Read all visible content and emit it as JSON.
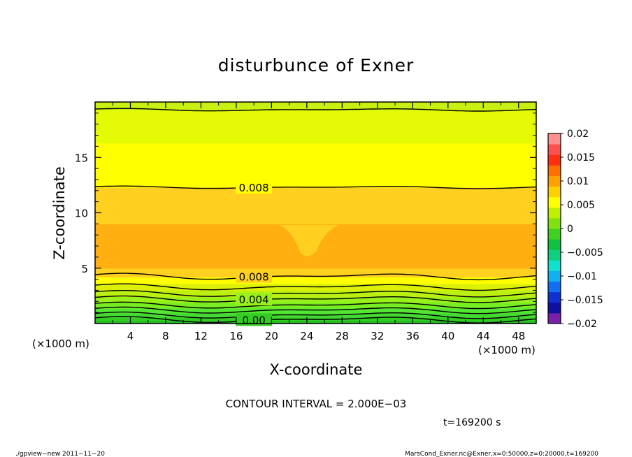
{
  "chart_data": {
    "type": "contour",
    "title": "disturbunce of Exner",
    "xlabel": "X-coordinate",
    "ylabel": "Z-coordinate",
    "x_unit": "(×1000 m)",
    "y_unit": "(×1000 m)",
    "xlim": [
      0,
      50
    ],
    "ylim": [
      0,
      20
    ],
    "xticks": [
      4,
      8,
      12,
      16,
      20,
      24,
      28,
      32,
      36,
      40,
      44,
      48
    ],
    "yticks": [
      5,
      10,
      15
    ],
    "bands": [
      {
        "z0": 0.0,
        "z1": 0.25,
        "color": "#22bb22",
        "level": -0.002
      },
      {
        "z0": 0.25,
        "z1": 0.55,
        "color": "#33cc22",
        "level": 0.0
      },
      {
        "z0": 0.55,
        "z1": 0.95,
        "color": "#44d933",
        "level": 0.001
      },
      {
        "z0": 0.95,
        "z1": 1.4,
        "color": "#55e633",
        "level": 0.002
      },
      {
        "z0": 1.4,
        "z1": 1.9,
        "color": "#77ee22",
        "level": 0.003
      },
      {
        "z0": 1.9,
        "z1": 2.4,
        "color": "#99f01a",
        "level": 0.004
      },
      {
        "z0": 2.4,
        "z1": 3.0,
        "color": "#bbf010",
        "level": 0.005
      },
      {
        "z0": 3.0,
        "z1": 3.6,
        "color": "#ddf008",
        "level": 0.006
      },
      {
        "z0": 3.6,
        "z1": 4.2,
        "color": "#ffff00",
        "level": 0.007
      },
      {
        "z0": 4.2,
        "z1": 5.0,
        "color": "#ffd020",
        "level": 0.008
      },
      {
        "z0": 5.0,
        "z1": 9.0,
        "color": "#ffb010",
        "level": 0.009
      },
      {
        "z0": 9.0,
        "z1": 12.3,
        "color": "#ffd020",
        "level": 0.008
      },
      {
        "z0": 12.3,
        "z1": 16.3,
        "color": "#ffff00",
        "level": 0.007
      },
      {
        "z0": 16.3,
        "z1": 19.3,
        "color": "#e5fa05",
        "level": 0.006
      },
      {
        "z0": 19.3,
        "z1": 20.0,
        "color": "#c8f010",
        "level": 0.005
      }
    ],
    "contour_lines": [
      {
        "z": 0.35,
        "label": "0.00"
      },
      {
        "z": 0.75,
        "label": ""
      },
      {
        "z": 1.2,
        "label": ""
      },
      {
        "z": 1.65,
        "label": ""
      },
      {
        "z": 2.2,
        "label": "0.004"
      },
      {
        "z": 2.7,
        "label": ""
      },
      {
        "z": 3.3,
        "label": ""
      },
      {
        "z": 4.25,
        "label": "0.008"
      },
      {
        "z": 12.3,
        "label": "0.008"
      },
      {
        "z": 19.3,
        "label": ""
      }
    ],
    "colorbar": {
      "ticks": [
        "0.02",
        "0.015",
        "0.01",
        "0.005",
        "0",
        "−0.005",
        "−0.01",
        "−0.015",
        "−0.02"
      ],
      "range": [
        -0.02,
        0.02
      ],
      "colors": [
        "#7a20a8",
        "#1010a0",
        "#1030d0",
        "#1070f0",
        "#10b0f0",
        "#10e0d0",
        "#10d080",
        "#10c040",
        "#40d020",
        "#80e010",
        "#c0f000",
        "#ffff00",
        "#ffd000",
        "#ffa000",
        "#ff7000",
        "#ff3010",
        "#ff5050",
        "#ff9090"
      ]
    }
  },
  "annotations": {
    "contour_interval": "CONTOUR INTERVAL = 2.000E−03",
    "time": "t=169200 s",
    "footer_left": "./gpview−new   2011−11−20",
    "footer_right": "MarsCond_Exner.nc@Exner,x=0:50000,z=0:20000,t=169200"
  }
}
